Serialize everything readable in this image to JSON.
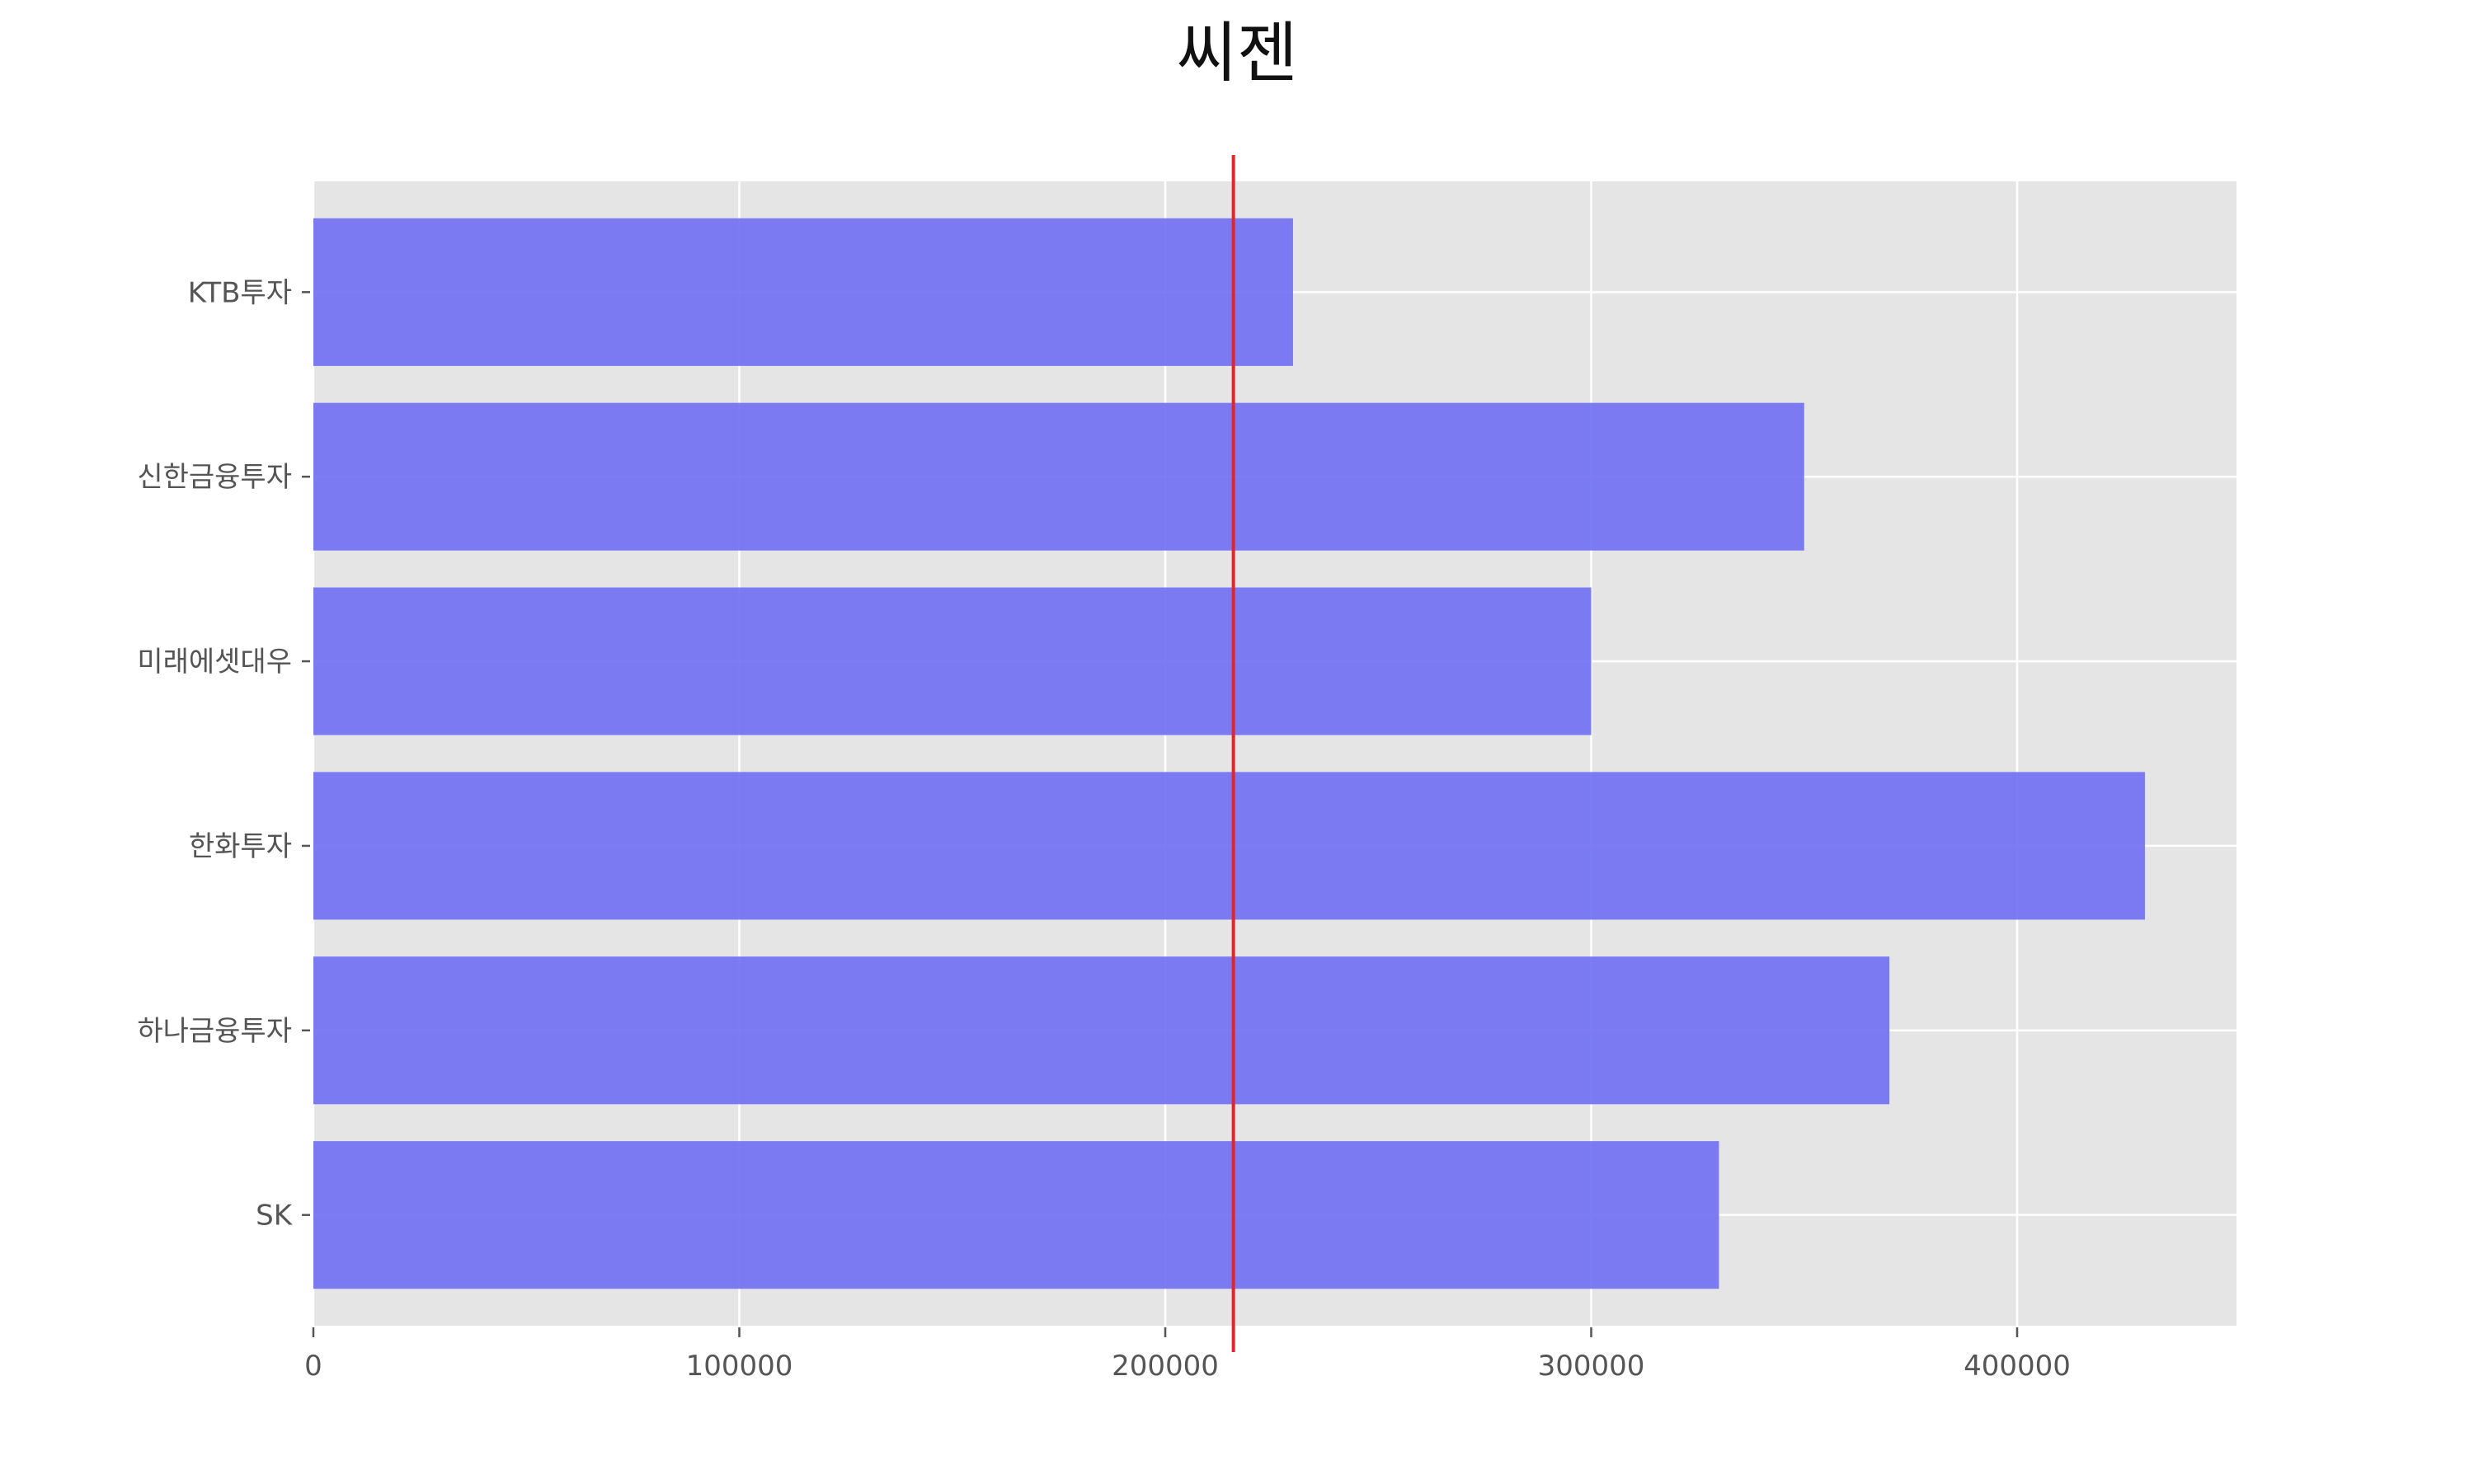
{
  "chart_data": {
    "type": "bar",
    "orientation": "horizontal",
    "title": "씨젠",
    "xlabel": "",
    "ylabel": "",
    "categories": [
      "KTB투자",
      "신한금융투자",
      "미래에셋대우",
      "한화투자",
      "하나금융투자",
      "SK"
    ],
    "values": [
      230000,
      350000,
      300000,
      430000,
      370000,
      330000
    ],
    "xlim": [
      0,
      451500
    ],
    "x_ticks": [
      0,
      100000,
      200000,
      300000,
      400000
    ],
    "x_tick_labels": [
      "0",
      "100000",
      "200000",
      "300000",
      "400000"
    ],
    "reference_line": {
      "value": 216000,
      "color": "#e3242b"
    },
    "grid": true,
    "bar_color": "#7271f3",
    "plot_background": "#e5e5e5",
    "grid_color": "#ffffff"
  }
}
